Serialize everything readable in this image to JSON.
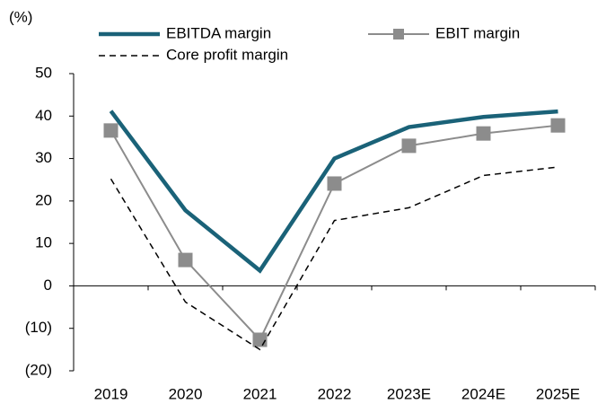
{
  "chart_data": {
    "type": "line",
    "y_label": "(%)",
    "categories": [
      "2019",
      "2020",
      "2021",
      "2022",
      "2023E",
      "2024E",
      "2025E"
    ],
    "series": [
      {
        "name": "EBITDA margin",
        "color": "#1a6278",
        "style": "solid",
        "values": [
          41.2,
          17.8,
          3.6,
          30.0,
          37.4,
          39.8,
          41.1
        ]
      },
      {
        "name": "EBIT margin",
        "color": "#8c8c8c",
        "style": "marker",
        "values": [
          36.6,
          6.1,
          -12.7,
          24.1,
          33.0,
          35.9,
          37.8
        ]
      },
      {
        "name": "Core profit margin",
        "color": "#000000",
        "style": "dashed",
        "values": [
          25.2,
          -3.8,
          -15.0,
          15.4,
          18.4,
          26.0,
          28.0
        ]
      }
    ],
    "ylim": [
      -20,
      50
    ],
    "yticks": [
      {
        "value": -20,
        "label": "(20)"
      },
      {
        "value": -10,
        "label": "(10)"
      },
      0,
      10,
      20,
      30,
      40,
      50
    ]
  }
}
